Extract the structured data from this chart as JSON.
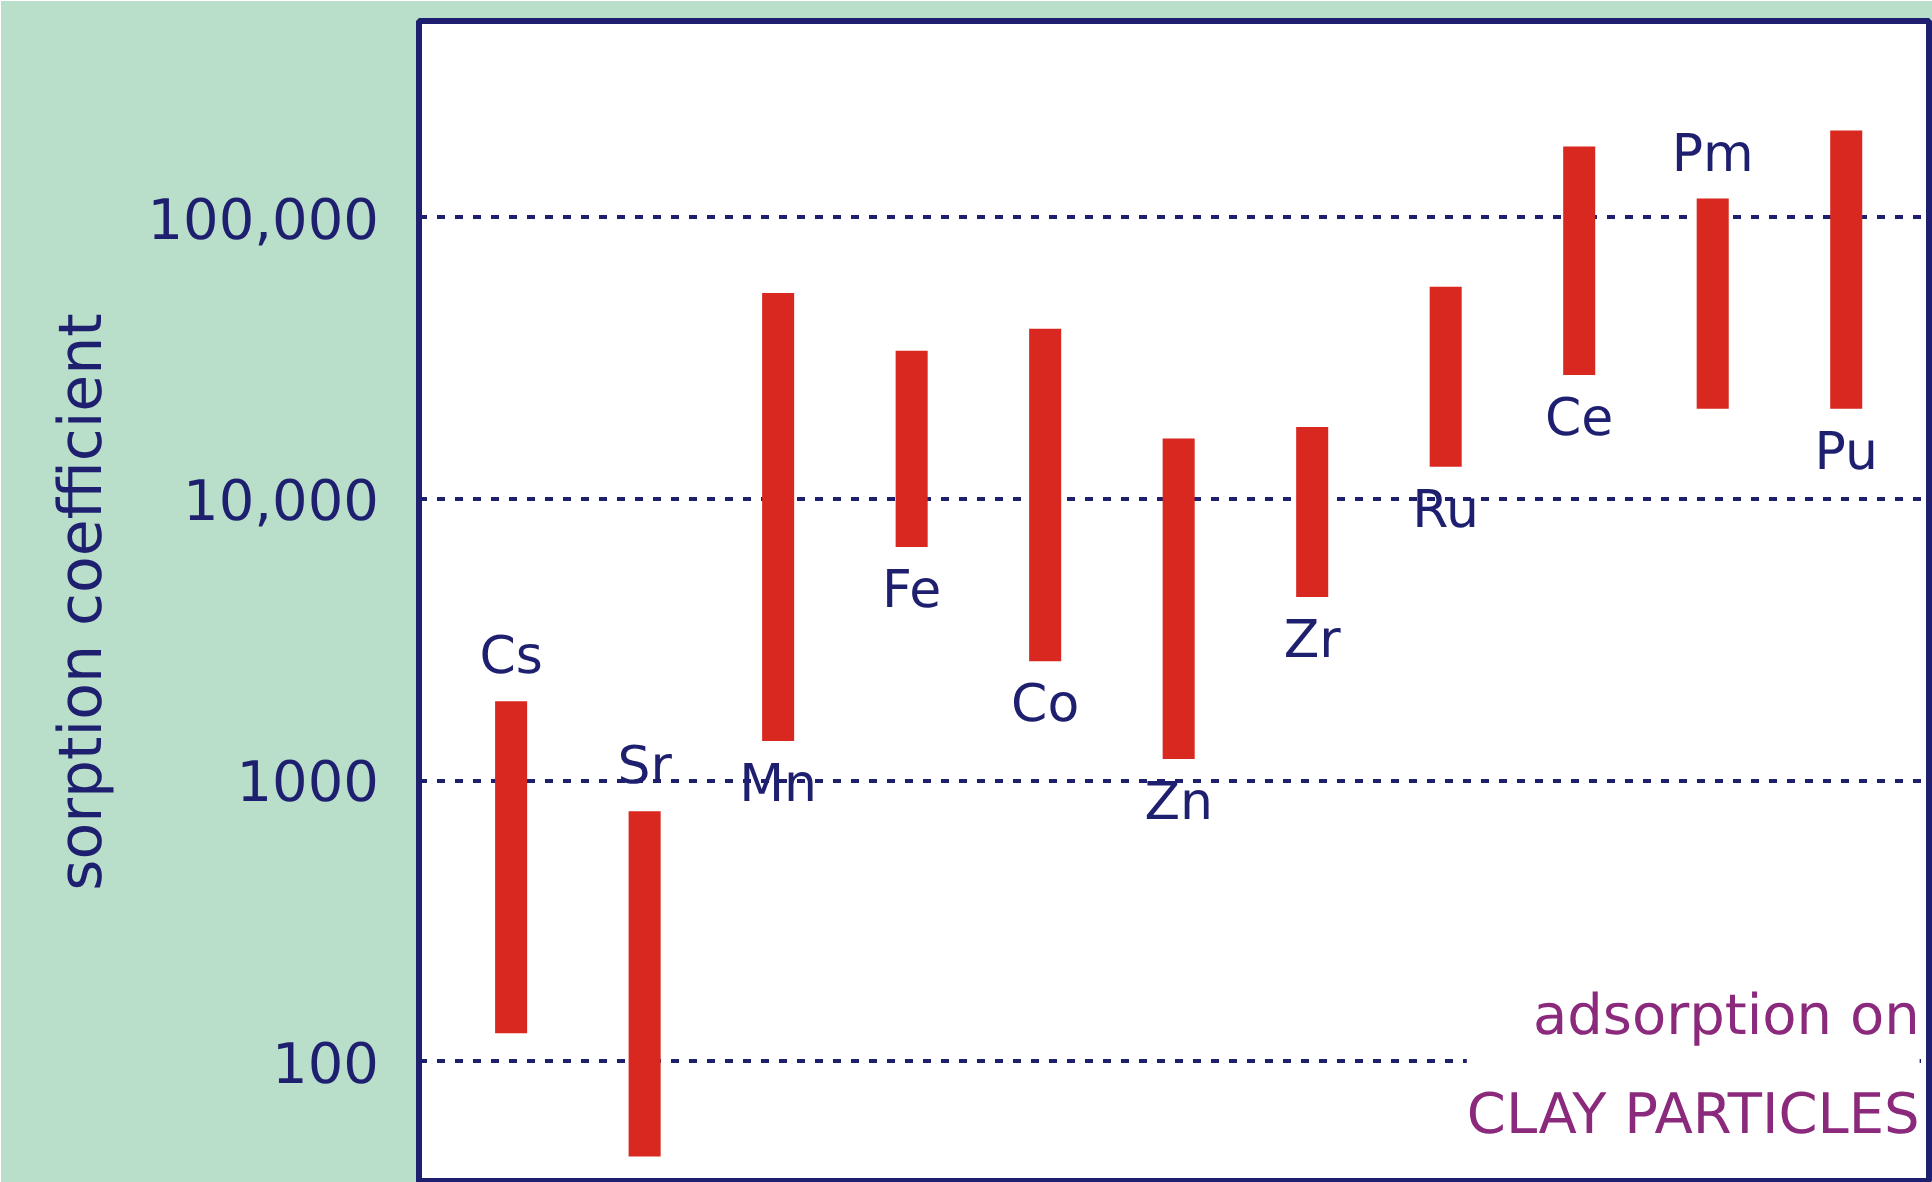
{
  "chart_data": {
    "type": "bar",
    "ylabel": "sorption coefficient",
    "categories": [
      "Cs",
      "Sr",
      "Mn",
      "Fe",
      "Co",
      "Zn",
      "Zr",
      "Ru",
      "Ce",
      "Pm",
      "Pu"
    ],
    "base": [
      126,
      46,
      1380,
      6750,
      2650,
      1190,
      4480,
      13000,
      27600,
      20900,
      20900
    ],
    "values": [
      1784,
      730,
      52620,
      26850,
      37650,
      15210,
      13520,
      43800,
      151400,
      96100,
      183100
    ],
    "color": "#d8281f",
    "log": "y",
    "ylim": [
      37,
      500000
    ],
    "yticks": [
      {
        "value": 100,
        "label": "100"
      },
      {
        "value": 1000,
        "label": "1000"
      },
      {
        "value": 10000,
        "label": "10,000"
      },
      {
        "value": 100000,
        "label": "100,000"
      }
    ],
    "grid": "y",
    "tick_labels": "y",
    "annotations": [
      "adsorption on\nCLAY PARTICLES"
    ]
  }
}
